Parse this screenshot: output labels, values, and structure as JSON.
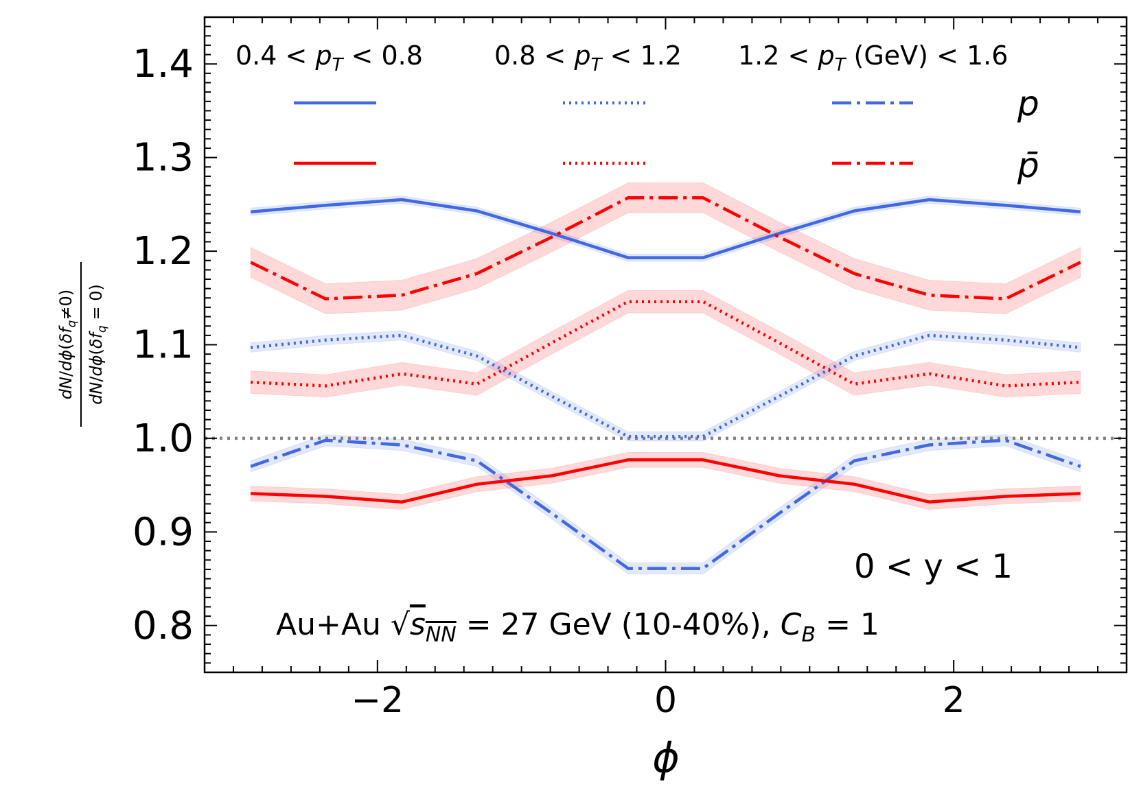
{
  "chart_data": {
    "type": "line",
    "title": "",
    "xlabel": "ϕ",
    "ylabel": "dN/dϕ(δf_q≠0) / dN/dϕ(δf_q=0)",
    "xlim": [
      -3.2,
      3.2
    ],
    "ylim": [
      0.75,
      1.45
    ],
    "x_major_ticks": [
      -2,
      0,
      2
    ],
    "x_tick_labels": [
      "−2",
      "0",
      "2"
    ],
    "y_major_ticks": [
      0.8,
      0.9,
      1.0,
      1.1,
      1.2,
      1.3,
      1.4
    ],
    "y_tick_labels": [
      "0.8",
      "0.9",
      "1.0",
      "1.1",
      "1.2",
      "1.3",
      "1.4"
    ],
    "x": [
      -2.88,
      -2.36,
      -1.83,
      -1.31,
      -0.79,
      -0.26,
      0.26,
      0.79,
      1.31,
      1.83,
      2.36,
      2.88
    ],
    "reference_line": {
      "y": 1.0,
      "color": "#808080",
      "style": "dotted"
    },
    "series": [
      {
        "name": "p, 0.4 < pT < 0.8",
        "species": "p",
        "pt_bin": "0.4-0.8",
        "color": "#4169e1",
        "style": "solid",
        "values": [
          1.242,
          1.249,
          1.255,
          1.243,
          1.219,
          1.193,
          1.193,
          1.219,
          1.243,
          1.255,
          1.249,
          1.242
        ],
        "band": 0.004
      },
      {
        "name": "p, 0.8 < pT < 1.2",
        "species": "p",
        "pt_bin": "0.8-1.2",
        "color": "#4169e1",
        "style": "dotted",
        "values": [
          1.097,
          1.105,
          1.11,
          1.088,
          1.045,
          1.002,
          1.002,
          1.045,
          1.088,
          1.11,
          1.105,
          1.097
        ],
        "band": 0.005
      },
      {
        "name": "p, 1.2 < pT < 1.6",
        "species": "p",
        "pt_bin": "1.2-1.6",
        "color": "#4169e1",
        "style": "dashdot",
        "values": [
          0.97,
          0.998,
          0.993,
          0.976,
          0.92,
          0.861,
          0.861,
          0.92,
          0.976,
          0.993,
          0.998,
          0.97
        ],
        "band": 0.006
      },
      {
        "name": "pbar, 0.4 < pT < 0.8",
        "species": "pbar",
        "pt_bin": "0.4-0.8",
        "color": "#ff0000",
        "style": "solid",
        "values": [
          0.941,
          0.938,
          0.932,
          0.951,
          0.96,
          0.977,
          0.977,
          0.96,
          0.951,
          0.932,
          0.938,
          0.941
        ],
        "band": 0.008
      },
      {
        "name": "pbar, 0.8 < pT < 1.2",
        "species": "pbar",
        "pt_bin": "0.8-1.2",
        "color": "#ff0000",
        "style": "dotted",
        "values": [
          1.06,
          1.056,
          1.069,
          1.058,
          1.102,
          1.146,
          1.146,
          1.102,
          1.058,
          1.069,
          1.056,
          1.06
        ],
        "band": 0.012
      },
      {
        "name": "pbar, 1.2 < pT < 1.6",
        "species": "pbar",
        "pt_bin": "1.2-1.6",
        "color": "#ff0000",
        "style": "dashdot",
        "values": [
          1.188,
          1.149,
          1.153,
          1.176,
          1.215,
          1.257,
          1.257,
          1.215,
          1.176,
          1.153,
          1.149,
          1.188
        ],
        "band": 0.016
      }
    ],
    "legend": {
      "placement": "top",
      "columns": [
        {
          "header_parts": [
            "0.4 < ",
            "p",
            "T",
            " < 0.8"
          ]
        },
        {
          "header_parts": [
            "0.8 < ",
            "p",
            "T",
            " < 1.2"
          ]
        },
        {
          "header_parts": [
            "1.2 < ",
            "p",
            "T",
            " (GeV) < 1.6"
          ]
        }
      ],
      "row_labels": [
        "p",
        "p̄"
      ]
    },
    "annotations": {
      "rapidity": "0 < y < 1",
      "system_prefix": "Au+Au ",
      "system_sqrt": "√",
      "system_s": "s",
      "system_sub": "NN",
      "system_mid": " = 27 GeV (10-40%), ",
      "system_c": "C",
      "system_csub": "B",
      "system_end": " = 1"
    },
    "colors": {
      "proton": "#4169e1",
      "antiproton": "#ff0000",
      "reference": "#808080"
    }
  }
}
